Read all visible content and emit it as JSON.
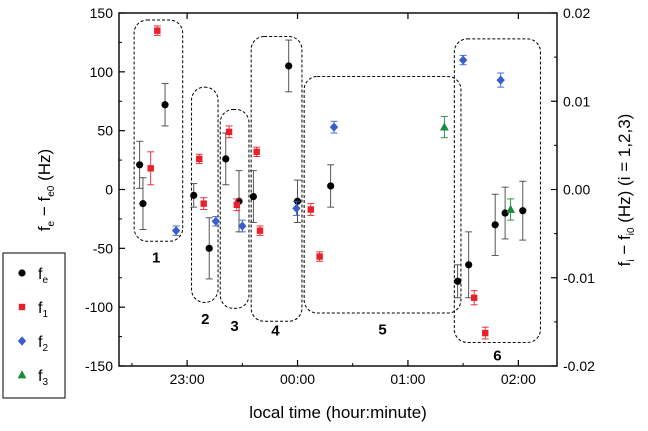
{
  "chart_data": {
    "type": "scatter",
    "xlabel": "local time (hour:minute)",
    "ylabel_left": {
      "main": "f",
      "sub1": "e",
      "mid": " − f",
      "sub2": "e0",
      "unit": " (Hz)"
    },
    "ylabel_right": {
      "main": "f",
      "sub1": "i",
      "mid": " − f",
      "sub2": "i0",
      "unit": "  (Hz)    (i = 1,2,3)"
    },
    "x_range_minutes": [
      22.383,
      26.35
    ],
    "x_ticks": [
      {
        "value": 23.0,
        "label": "23:00"
      },
      {
        "value": 24.0,
        "label": "00:00"
      },
      {
        "value": 25.0,
        "label": "01:00"
      },
      {
        "value": 26.0,
        "label": "02:00"
      }
    ],
    "ylim_left": [
      -150,
      150
    ],
    "y_ticks_left": [
      -150,
      -100,
      -50,
      0,
      50,
      100,
      150
    ],
    "ylim_right": [
      -0.02,
      0.02
    ],
    "y_ticks_right": [
      {
        "value": -0.02,
        "label": "-0.02"
      },
      {
        "value": -0.01,
        "label": "-0.01"
      },
      {
        "value": 0.0,
        "label": "0.00"
      },
      {
        "value": 0.01,
        "label": "0.01"
      },
      {
        "value": 0.02,
        "label": "0.02"
      }
    ],
    "legend": {
      "placement": "bottom-left-outside",
      "entries": [
        {
          "main": "f",
          "sub": "e",
          "marker": "circle",
          "color": "#000000"
        },
        {
          "main": "f",
          "sub": "1",
          "marker": "square",
          "color": "#e8202a"
        },
        {
          "main": "f",
          "sub": "2",
          "marker": "diamond",
          "color": "#3a5fcd"
        },
        {
          "main": "f",
          "sub": "3",
          "marker": "triangle",
          "color": "#1a8a3c"
        }
      ]
    },
    "series": [
      {
        "id": "fe",
        "marker": "circle",
        "color": "#000000",
        "points": [
          {
            "x": 22.57,
            "y": 21,
            "err": 20
          },
          {
            "x": 22.6,
            "y": -12,
            "err": 22
          },
          {
            "x": 22.8,
            "y": 72,
            "err": 18
          },
          {
            "x": 23.06,
            "y": -5,
            "err": 10
          },
          {
            "x": 23.2,
            "y": -50,
            "err": 26
          },
          {
            "x": 23.35,
            "y": 26,
            "err": 22
          },
          {
            "x": 23.47,
            "y": -10,
            "err": 26
          },
          {
            "x": 23.6,
            "y": -6,
            "err": 22
          },
          {
            "x": 23.92,
            "y": 105,
            "err": 22
          },
          {
            "x": 24.0,
            "y": -10,
            "err": 18
          },
          {
            "x": 24.3,
            "y": 3,
            "err": 18
          },
          {
            "x": 25.45,
            "y": -78,
            "err": 14
          },
          {
            "x": 25.55,
            "y": -64,
            "err": 28
          },
          {
            "x": 25.79,
            "y": -30,
            "err": 26
          },
          {
            "x": 25.88,
            "y": -20,
            "err": 22
          },
          {
            "x": 26.04,
            "y": -18,
            "err": 25
          }
        ]
      },
      {
        "id": "f1",
        "marker": "square",
        "color": "#e8202a",
        "points": [
          {
            "x": 22.67,
            "y": 18,
            "err": 14
          },
          {
            "x": 22.73,
            "y": 135,
            "err": 4
          },
          {
            "x": 23.11,
            "y": 26,
            "err": 4
          },
          {
            "x": 23.15,
            "y": -12,
            "err": 5
          },
          {
            "x": 23.38,
            "y": 49,
            "err": 5
          },
          {
            "x": 23.45,
            "y": -13,
            "err": 5
          },
          {
            "x": 23.63,
            "y": 32,
            "err": 4
          },
          {
            "x": 23.66,
            "y": -35,
            "err": 4
          },
          {
            "x": 24.12,
            "y": -17,
            "err": 5
          },
          {
            "x": 24.2,
            "y": -57,
            "err": 4
          },
          {
            "x": 25.6,
            "y": -92,
            "err": 6
          },
          {
            "x": 25.7,
            "y": -122,
            "err": 5
          }
        ]
      },
      {
        "id": "f2",
        "marker": "diamond",
        "color": "#3a5fcd",
        "points": [
          {
            "x": 22.9,
            "y": -35,
            "err": 4
          },
          {
            "x": 23.26,
            "y": -27,
            "err": 4
          },
          {
            "x": 23.5,
            "y": -31,
            "err": 5
          },
          {
            "x": 23.99,
            "y": -16,
            "err": 6
          },
          {
            "x": 24.33,
            "y": 53,
            "err": 5
          },
          {
            "x": 25.5,
            "y": 110,
            "err": 4
          },
          {
            "x": 25.84,
            "y": 93,
            "err": 6
          }
        ]
      },
      {
        "id": "f3",
        "marker": "triangle",
        "color": "#1a8a3c",
        "points": [
          {
            "x": 25.33,
            "y": 53,
            "err": 9
          },
          {
            "x": 25.93,
            "y": -17,
            "err": 9
          }
        ]
      }
    ],
    "groups": [
      {
        "label": "1",
        "x0": 22.52,
        "x1": 22.96,
        "y0": 144,
        "y1": -44,
        "label_x": 22.72,
        "label_y": -58
      },
      {
        "label": "2",
        "x0": 23.04,
        "x1": 23.28,
        "y0": 87,
        "y1": -96,
        "label_x": 23.165,
        "label_y": -110
      },
      {
        "label": "3",
        "x0": 23.3,
        "x1": 23.56,
        "y0": 68,
        "y1": -101,
        "label_x": 23.43,
        "label_y": -116
      },
      {
        "label": "4",
        "x0": 23.58,
        "x1": 24.04,
        "y0": 130,
        "y1": -112,
        "label_x": 23.8,
        "label_y": -120
      },
      {
        "label": "5",
        "x0": 24.06,
        "x1": 25.48,
        "y0": 96,
        "y1": -105,
        "label_x": 24.77,
        "label_y": -119
      },
      {
        "label": "6",
        "x0": 25.42,
        "x1": 26.2,
        "y0": 128,
        "y1": -130,
        "label_x": 25.81,
        "label_y": -141
      }
    ]
  }
}
